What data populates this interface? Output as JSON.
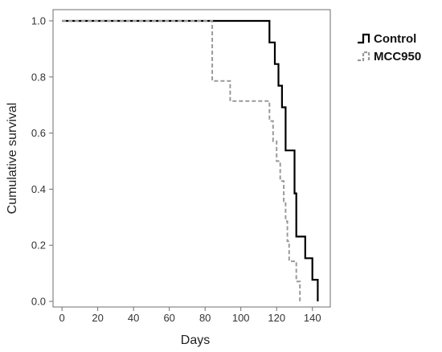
{
  "chart_data": {
    "type": "line",
    "step": true,
    "title": "",
    "xlabel": "Days",
    "ylabel": "Cumulative survival",
    "xlim": [
      -5,
      150
    ],
    "ylim": [
      -0.02,
      1.04
    ],
    "xticks": [
      0,
      20,
      40,
      60,
      80,
      100,
      120,
      140
    ],
    "yticks": [
      0.0,
      0.2,
      0.4,
      0.6,
      0.8,
      1.0
    ],
    "ytick_labels": [
      "0.0",
      "0.2",
      "0.4",
      "0.6",
      "0.8",
      "1.0"
    ],
    "grid": false,
    "legend_position": "top-right",
    "series": [
      {
        "name": "Control",
        "color": "#000000",
        "style": "solid",
        "x": [
          0,
          116,
          119,
          121,
          123,
          125,
          127,
          130,
          131,
          134,
          136,
          140,
          143
        ],
        "y": [
          1.0,
          0.923,
          0.846,
          0.769,
          0.692,
          0.538,
          0.538,
          0.385,
          0.231,
          0.231,
          0.154,
          0.077,
          0.0
        ]
      },
      {
        "name": "MCC950",
        "color": "#999999",
        "style": "dashed",
        "x": [
          0,
          84,
          94,
          116,
          118,
          120,
          122,
          124,
          125,
          126,
          127,
          129,
          131,
          133
        ],
        "y": [
          1.0,
          0.786,
          0.714,
          0.643,
          0.571,
          0.5,
          0.429,
          0.357,
          0.286,
          0.214,
          0.143,
          0.143,
          0.071,
          0.0
        ]
      }
    ]
  }
}
